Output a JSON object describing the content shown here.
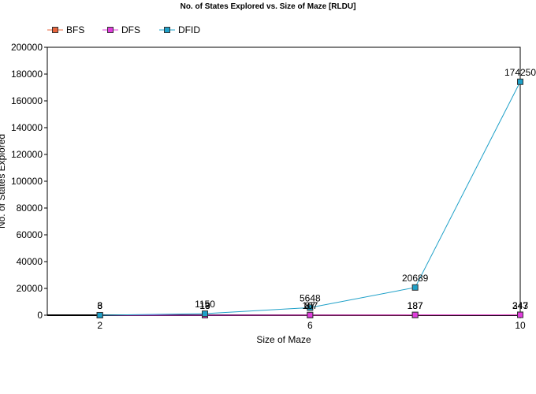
{
  "chart_data": {
    "type": "line",
    "title": "No. of States Explored vs. Size of Maze [RLDU]",
    "xlabel": "Size of Maze",
    "ylabel": "No. of States Explored",
    "x": [
      2,
      4,
      6,
      8,
      10
    ],
    "x_tick_labels": [
      "2",
      "6",
      "10"
    ],
    "x_tick_values": [
      2,
      6,
      10
    ],
    "xlim": [
      1,
      10
    ],
    "ylim": [
      0,
      200000
    ],
    "y_ticks": [
      0,
      20000,
      40000,
      60000,
      80000,
      100000,
      120000,
      140000,
      160000,
      180000,
      200000
    ],
    "y_tick_labels": [
      "0",
      "20000",
      "40000",
      "60000",
      "80000",
      "100000",
      "120000",
      "140000",
      "160000",
      "180000",
      "200000"
    ],
    "legend_position": "top-left",
    "grid": false,
    "series": [
      {
        "name": "BFS",
        "color": "#e8643c",
        "values": [
          3,
          19,
          107,
          187,
          347
        ]
      },
      {
        "name": "DFS",
        "color": "#e03cdc",
        "values": [
          6,
          13,
          87,
          187,
          243
        ]
      },
      {
        "name": "DFID",
        "color": "#1ea0c8",
        "values": [
          3,
          1150,
          5648,
          20689,
          174250
        ]
      }
    ],
    "data_labels": [
      {
        "x": 2,
        "text": "6"
      },
      {
        "x": 2,
        "text": "3"
      },
      {
        "x": 2,
        "text": "3"
      },
      {
        "x": 4,
        "text": "1150"
      },
      {
        "x": 4,
        "text": "19"
      },
      {
        "x": 4,
        "text": "13"
      },
      {
        "x": 6,
        "text": "5648"
      },
      {
        "x": 6,
        "text": "107"
      },
      {
        "x": 6,
        "text": "87"
      },
      {
        "x": 8,
        "text": "20689"
      },
      {
        "x": 8,
        "text": "187"
      },
      {
        "x": 8,
        "text": "187"
      },
      {
        "x": 10,
        "text": "174250"
      },
      {
        "x": 10,
        "text": "347"
      },
      {
        "x": 10,
        "text": "243"
      }
    ]
  }
}
